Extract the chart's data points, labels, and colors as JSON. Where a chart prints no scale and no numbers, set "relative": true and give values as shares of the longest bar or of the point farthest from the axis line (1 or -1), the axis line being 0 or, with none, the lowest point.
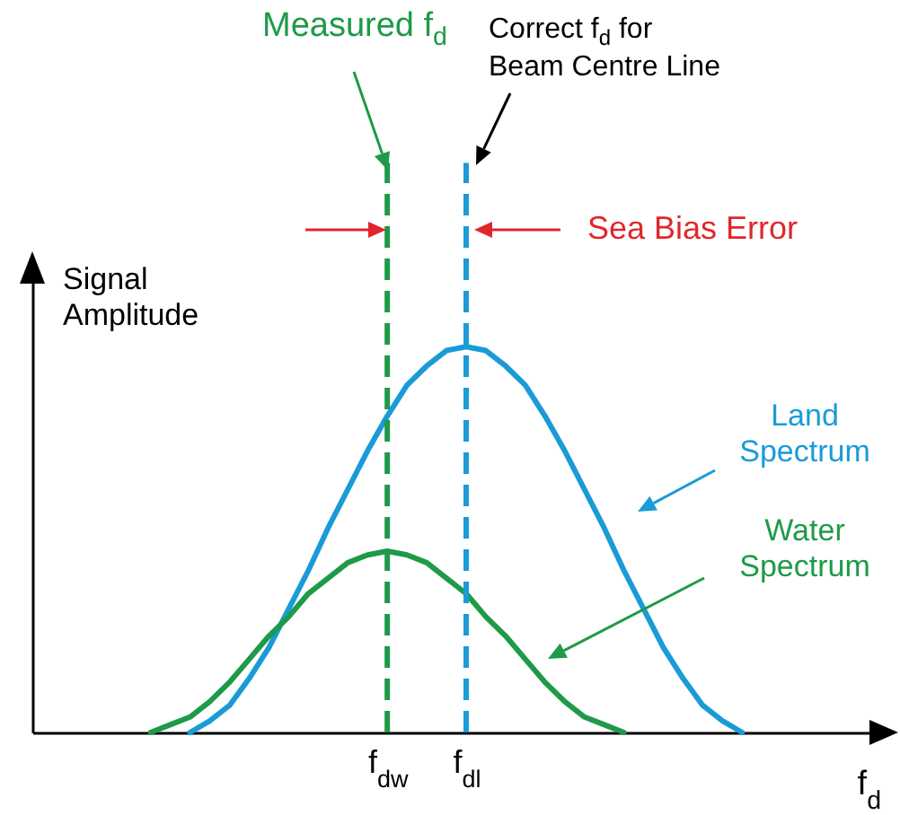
{
  "chart_data": {
    "type": "line",
    "relative": true,
    "ylabel": "Signal Amplitude",
    "xlabel": "f$_{d}$",
    "categories": [
      null,
      null,
      null,
      null,
      null,
      null,
      null,
      null,
      null,
      null,
      null,
      null,
      null,
      null,
      null,
      null,
      null,
      null,
      "f$_{dw}$",
      null,
      null,
      null,
      "f$_{dl}$",
      null,
      null,
      null,
      null,
      null,
      null,
      null,
      null,
      null,
      null,
      null,
      null,
      null,
      null,
      null,
      null,
      null,
      null,
      null,
      null,
      null
    ],
    "series": [
      {
        "name": "Land Spectrum",
        "color": "#1a9bd7",
        "values": [
          null,
          null,
          null,
          null,
          null,
          null,
          null,
          null,
          0,
          0.03,
          0.07,
          0.14,
          0.22,
          0.32,
          0.42,
          0.53,
          0.63,
          0.73,
          0.82,
          0.9,
          0.95,
          0.99,
          1,
          0.99,
          0.95,
          0.9,
          0.82,
          0.73,
          0.63,
          0.53,
          0.42,
          0.32,
          0.22,
          0.14,
          0.07,
          0.03,
          0,
          null,
          null,
          null,
          null,
          null,
          null,
          null
        ]
      },
      {
        "name": "Water Spectrum",
        "color": "#1e9a48",
        "values": [
          null,
          null,
          null,
          null,
          null,
          null,
          0,
          0.02,
          0.04,
          0.08,
          0.13,
          0.19,
          0.25,
          0.3,
          0.36,
          0.4,
          0.44,
          0.46,
          0.47,
          0.46,
          0.44,
          0.4,
          0.36,
          0.3,
          0.25,
          0.19,
          0.13,
          0.08,
          0.04,
          0.02,
          0,
          null,
          null,
          null,
          null,
          null,
          null,
          null,
          null,
          null,
          null,
          null,
          null,
          null
        ]
      }
    ],
    "ref_lines": [
      {
        "axis": "x",
        "value": "f$_{dw}$",
        "label": "Measured f$_{d}$",
        "color": "#1e9a48",
        "line_style": "dashed"
      },
      {
        "axis": "x",
        "value": "f$_{dl}$",
        "label": "Correct f$_{d}$ for Beam Centre Line",
        "color": "#1a9bd7",
        "line_style": "dashed"
      }
    ],
    "annotations": [
      "Sea Bias Error"
    ]
  }
}
